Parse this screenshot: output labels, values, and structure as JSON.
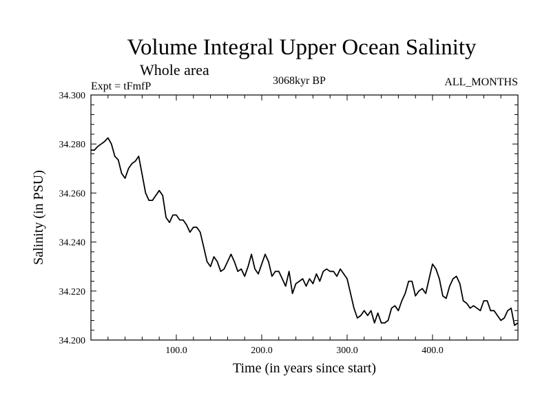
{
  "chart_data": {
    "type": "line",
    "title": "Volume Integral Upper Ocean Salinity",
    "subtitle": "Whole area",
    "experiment_label": "Expt = tFmfP",
    "period_label": "3068kyr BP",
    "months_label": "ALL_MONTHS",
    "xlabel": "Time (in years since start)",
    "ylabel": "Salinity (in PSU)",
    "xlim": [
      0,
      500
    ],
    "ylim": [
      34.2,
      34.3
    ],
    "x_ticks": [
      100,
      200,
      300,
      400
    ],
    "x_tick_labels": [
      "100.0",
      "200.0",
      "300.0",
      "400.0"
    ],
    "y_ticks": [
      34.2,
      34.22,
      34.24,
      34.26,
      34.28,
      34.3
    ],
    "y_tick_labels": [
      "34.200",
      "34.220",
      "34.240",
      "34.260",
      "34.280",
      "34.300"
    ],
    "series": [
      {
        "name": "Salinity",
        "color": "#000000",
        "x": [
          0,
          4,
          8,
          12,
          16,
          20,
          24,
          28,
          32,
          36,
          40,
          44,
          48,
          52,
          56,
          60,
          64,
          68,
          72,
          76,
          80,
          84,
          88,
          92,
          96,
          100,
          104,
          108,
          112,
          116,
          120,
          124,
          128,
          132,
          136,
          140,
          144,
          148,
          152,
          156,
          160,
          164,
          168,
          172,
          176,
          180,
          184,
          188,
          192,
          196,
          200,
          204,
          208,
          212,
          216,
          220,
          224,
          228,
          232,
          236,
          240,
          244,
          248,
          252,
          256,
          260,
          264,
          268,
          272,
          276,
          280,
          284,
          288,
          292,
          296,
          300,
          304,
          308,
          312,
          316,
          320,
          324,
          328,
          332,
          336,
          340,
          344,
          348,
          352,
          356,
          360,
          364,
          368,
          372,
          376,
          380,
          384,
          388,
          392,
          396,
          400,
          404,
          408,
          412,
          416,
          420,
          424,
          428,
          432,
          436,
          440,
          444,
          448,
          452,
          456,
          460,
          464,
          468,
          472,
          476,
          480,
          484,
          488,
          492,
          496,
          500
        ],
        "values": [
          34.2775,
          34.2775,
          34.279,
          34.28,
          34.281,
          34.2825,
          34.28,
          34.275,
          34.2735,
          34.268,
          34.266,
          34.27,
          34.272,
          34.273,
          34.275,
          34.2675,
          34.26,
          34.257,
          34.257,
          34.259,
          34.261,
          34.259,
          34.25,
          34.248,
          34.251,
          34.251,
          34.249,
          34.249,
          34.247,
          34.244,
          34.246,
          34.246,
          34.244,
          34.238,
          34.232,
          34.23,
          34.234,
          34.232,
          34.228,
          34.229,
          34.232,
          34.235,
          34.232,
          34.228,
          34.229,
          34.226,
          34.23,
          34.235,
          34.229,
          34.227,
          34.231,
          34.235,
          34.232,
          34.226,
          34.228,
          34.228,
          34.225,
          34.222,
          34.228,
          34.219,
          34.223,
          34.224,
          34.225,
          34.222,
          34.225,
          34.223,
          34.227,
          34.224,
          34.228,
          34.229,
          34.228,
          34.228,
          34.226,
          34.229,
          34.227,
          34.225,
          34.219,
          34.213,
          34.209,
          34.21,
          34.212,
          34.21,
          34.212,
          34.207,
          34.211,
          34.207,
          34.207,
          34.208,
          34.213,
          34.214,
          34.212,
          34.216,
          34.219,
          34.224,
          34.224,
          34.218,
          34.22,
          34.221,
          34.219,
          34.225,
          34.231,
          34.229,
          34.225,
          34.218,
          34.217,
          34.222,
          34.225,
          34.226,
          34.223,
          34.216,
          34.215,
          34.213,
          34.214,
          34.213,
          34.212,
          34.216,
          34.216,
          34.212,
          34.212,
          34.21,
          34.208,
          34.209,
          34.212,
          34.213,
          34.206,
          34.207
        ]
      }
    ]
  }
}
